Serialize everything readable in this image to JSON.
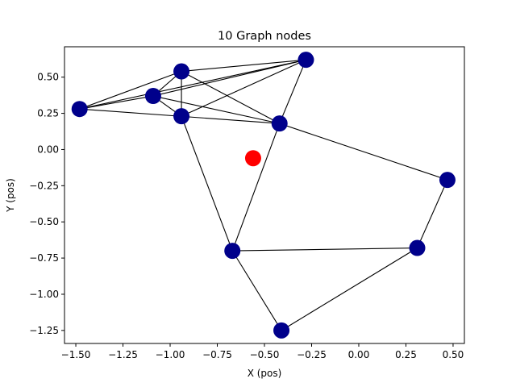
{
  "chart_data": {
    "type": "scatter",
    "title": "10 Graph nodes",
    "xlabel": "X (pos)",
    "ylabel": "Y (pos)",
    "xlim": [
      -1.56,
      0.56
    ],
    "ylim": [
      -1.34,
      0.71
    ],
    "x_ticks": [
      "−1.50",
      "−1.25",
      "−1.00",
      "−0.75",
      "−0.50",
      "−0.25",
      "0.00",
      "0.25",
      "0.50"
    ],
    "x_tick_values": [
      -1.5,
      -1.25,
      -1.0,
      -0.75,
      -0.5,
      -0.25,
      0.0,
      0.25,
      0.5
    ],
    "y_ticks": [
      "0.50",
      "0.25",
      "0.00",
      "−0.25",
      "−0.50",
      "−0.75",
      "−1.00",
      "−1.25"
    ],
    "y_tick_values": [
      0.5,
      0.25,
      0.0,
      -0.25,
      -0.5,
      -0.75,
      -1.0,
      -1.25
    ],
    "grid": false,
    "node_color": "#00008b",
    "highlight_color": "#ff0000",
    "edge_color": "#000000",
    "nodes": [
      {
        "id": 0,
        "x": -1.48,
        "y": 0.28
      },
      {
        "id": 1,
        "x": -1.09,
        "y": 0.37
      },
      {
        "id": 2,
        "x": -0.94,
        "y": 0.54
      },
      {
        "id": 3,
        "x": -0.94,
        "y": 0.23
      },
      {
        "id": 4,
        "x": -0.28,
        "y": 0.62
      },
      {
        "id": 5,
        "x": -0.42,
        "y": 0.18
      },
      {
        "id": 6,
        "x": 0.47,
        "y": -0.21
      },
      {
        "id": 7,
        "x": 0.31,
        "y": -0.68
      },
      {
        "id": 8,
        "x": -0.67,
        "y": -0.7
      },
      {
        "id": 9,
        "x": -0.41,
        "y": -1.25
      }
    ],
    "highlight_point": {
      "x": -0.56,
      "y": -0.06
    },
    "edges": [
      [
        0,
        2
      ],
      [
        0,
        1
      ],
      [
        0,
        4
      ],
      [
        0,
        5
      ],
      [
        1,
        2
      ],
      [
        1,
        3
      ],
      [
        1,
        4
      ],
      [
        1,
        5
      ],
      [
        2,
        3
      ],
      [
        2,
        4
      ],
      [
        2,
        5
      ],
      [
        3,
        4
      ],
      [
        3,
        8
      ],
      [
        4,
        5
      ],
      [
        5,
        8
      ],
      [
        5,
        6
      ],
      [
        6,
        7
      ],
      [
        7,
        8
      ],
      [
        7,
        9
      ],
      [
        8,
        9
      ]
    ]
  }
}
